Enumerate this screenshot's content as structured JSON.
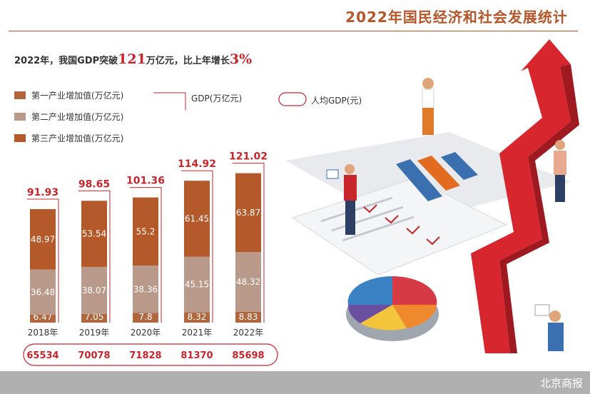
{
  "title": "2022年国民经济和社会发展统计",
  "headline": {
    "prefix": "2022年，我国GDP突破",
    "value1": "121",
    "mid": "万亿元，比上年增长",
    "value2": "3",
    "suffix": "%"
  },
  "legend": {
    "primary": "第一产业增加值(万亿元)",
    "secondary": "第二产业增加值(万亿元)",
    "tertiary": "第三产业增加值(万亿元)",
    "gdp": "GDP(万亿元)",
    "per_capita": "人均GDP(元)"
  },
  "colors": {
    "primary": "#b0673e",
    "secondary": "#b8998a",
    "tertiary": "#b4592a",
    "accent": "#c8242c"
  },
  "source": "北京商报",
  "chart_data": {
    "type": "bar",
    "stacked": true,
    "categories": [
      "2018年",
      "2019年",
      "2020年",
      "2021年",
      "2022年"
    ],
    "series": [
      {
        "name": "第一产业增加值(万亿元)",
        "values": [
          "6.47",
          "7.05",
          "7.8",
          "8.32",
          "8.83"
        ]
      },
      {
        "name": "第二产业增加值(万亿元)",
        "values": [
          "36.48",
          "38.07",
          "38.36",
          "45.15",
          "48.32"
        ]
      },
      {
        "name": "第三产业增加值(万亿元)",
        "values": [
          "48.97",
          "53.54",
          "55.2",
          "61.45",
          "63.87"
        ]
      }
    ],
    "gdp_totals": [
      "91.93",
      "98.65",
      "101.36",
      "114.92",
      "121.02"
    ],
    "per_capita_gdp": [
      "65534",
      "70078",
      "71828",
      "81370",
      "85698"
    ]
  }
}
